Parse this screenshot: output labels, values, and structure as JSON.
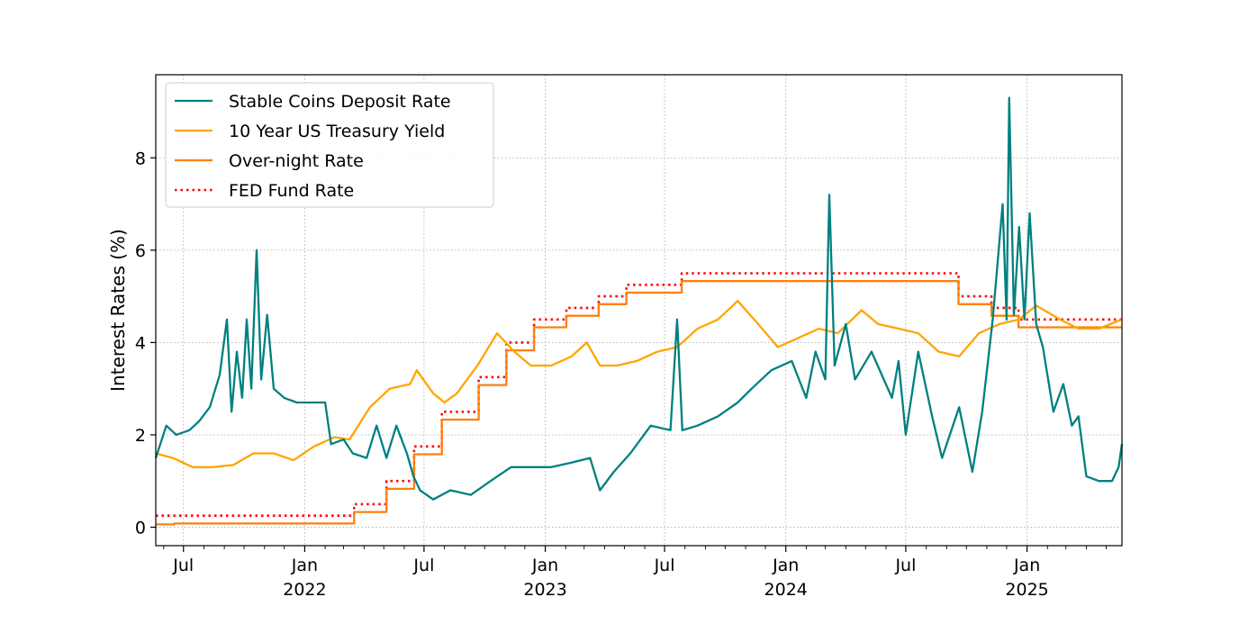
{
  "chart_data": {
    "type": "line",
    "title": "",
    "xlabel": "",
    "ylabel": "Interest Rates (%)",
    "xlim": [
      "2021-05-20",
      "2025-05-25"
    ],
    "ylim": [
      -0.4,
      9.8
    ],
    "grid": true,
    "legend_position": "upper-left",
    "yticks": [
      0,
      2,
      4,
      6,
      8
    ],
    "xticks": [
      {
        "date": "2021-07-01",
        "label": "Jul",
        "year": ""
      },
      {
        "date": "2022-01-01",
        "label": "Jan",
        "year": "2022"
      },
      {
        "date": "2022-07-01",
        "label": "Jul",
        "year": ""
      },
      {
        "date": "2023-01-01",
        "label": "Jan",
        "year": "2023"
      },
      {
        "date": "2023-07-01",
        "label": "Jul",
        "year": ""
      },
      {
        "date": "2024-01-01",
        "label": "Jan",
        "year": "2024"
      },
      {
        "date": "2024-07-01",
        "label": "Jul",
        "year": ""
      },
      {
        "date": "2025-01-01",
        "label": "Jan",
        "year": "2025"
      }
    ],
    "series": [
      {
        "name": "Stable Coins Deposit Rate",
        "color": "#008080",
        "style": "solid",
        "points": [
          [
            "2021-05-20",
            1.5
          ],
          [
            "2021-06-05",
            2.2
          ],
          [
            "2021-06-20",
            2.0
          ],
          [
            "2021-07-10",
            2.1
          ],
          [
            "2021-07-25",
            2.3
          ],
          [
            "2021-08-10",
            2.6
          ],
          [
            "2021-08-25",
            3.3
          ],
          [
            "2021-09-05",
            4.5
          ],
          [
            "2021-09-12",
            2.5
          ],
          [
            "2021-09-20",
            3.8
          ],
          [
            "2021-09-28",
            2.8
          ],
          [
            "2021-10-05",
            4.5
          ],
          [
            "2021-10-12",
            3.0
          ],
          [
            "2021-10-20",
            6.0
          ],
          [
            "2021-10-27",
            3.2
          ],
          [
            "2021-11-05",
            4.6
          ],
          [
            "2021-11-15",
            3.0
          ],
          [
            "2021-12-01",
            2.8
          ],
          [
            "2021-12-20",
            2.7
          ],
          [
            "2022-01-10",
            2.7
          ],
          [
            "2022-02-01",
            2.7
          ],
          [
            "2022-02-10",
            1.8
          ],
          [
            "2022-03-01",
            1.9
          ],
          [
            "2022-03-15",
            1.6
          ],
          [
            "2022-04-05",
            1.5
          ],
          [
            "2022-04-20",
            2.2
          ],
          [
            "2022-05-05",
            1.5
          ],
          [
            "2022-05-20",
            2.2
          ],
          [
            "2022-06-05",
            1.6
          ],
          [
            "2022-06-15",
            1.1
          ],
          [
            "2022-06-25",
            0.8
          ],
          [
            "2022-07-15",
            0.6
          ],
          [
            "2022-08-10",
            0.8
          ],
          [
            "2022-09-10",
            0.7
          ],
          [
            "2022-10-10",
            1.0
          ],
          [
            "2022-11-10",
            1.3
          ],
          [
            "2022-12-10",
            1.3
          ],
          [
            "2023-01-10",
            1.3
          ],
          [
            "2023-02-10",
            1.4
          ],
          [
            "2023-03-10",
            1.5
          ],
          [
            "2023-03-25",
            0.8
          ],
          [
            "2023-04-15",
            1.2
          ],
          [
            "2023-05-10",
            1.6
          ],
          [
            "2023-06-10",
            2.2
          ],
          [
            "2023-07-10",
            2.1
          ],
          [
            "2023-07-20",
            4.5
          ],
          [
            "2023-07-28",
            2.1
          ],
          [
            "2023-08-20",
            2.2
          ],
          [
            "2023-09-20",
            2.4
          ],
          [
            "2023-10-20",
            2.7
          ],
          [
            "2023-11-10",
            3.0
          ],
          [
            "2023-12-10",
            3.4
          ],
          [
            "2024-01-10",
            3.6
          ],
          [
            "2024-02-01",
            2.8
          ],
          [
            "2024-02-15",
            3.8
          ],
          [
            "2024-03-01",
            3.2
          ],
          [
            "2024-03-07",
            7.2
          ],
          [
            "2024-03-15",
            3.5
          ],
          [
            "2024-04-01",
            4.4
          ],
          [
            "2024-04-15",
            3.2
          ],
          [
            "2024-05-10",
            3.8
          ],
          [
            "2024-06-10",
            2.8
          ],
          [
            "2024-06-20",
            3.6
          ],
          [
            "2024-07-01",
            2.0
          ],
          [
            "2024-07-20",
            3.8
          ],
          [
            "2024-08-10",
            2.4
          ],
          [
            "2024-08-25",
            1.5
          ],
          [
            "2024-09-20",
            2.6
          ],
          [
            "2024-10-10",
            1.2
          ],
          [
            "2024-10-25",
            2.5
          ],
          [
            "2024-11-10",
            4.5
          ],
          [
            "2024-11-25",
            7.0
          ],
          [
            "2024-12-01",
            4.5
          ],
          [
            "2024-12-05",
            9.3
          ],
          [
            "2024-12-12",
            4.6
          ],
          [
            "2024-12-20",
            6.5
          ],
          [
            "2024-12-28",
            4.5
          ],
          [
            "2025-01-05",
            6.8
          ],
          [
            "2025-01-15",
            4.4
          ],
          [
            "2025-01-25",
            3.9
          ],
          [
            "2025-02-10",
            2.5
          ],
          [
            "2025-02-25",
            3.1
          ],
          [
            "2025-03-10",
            2.2
          ],
          [
            "2025-03-20",
            2.4
          ],
          [
            "2025-04-01",
            1.1
          ],
          [
            "2025-04-20",
            1.0
          ],
          [
            "2025-05-10",
            1.0
          ],
          [
            "2025-05-20",
            1.3
          ],
          [
            "2025-05-25",
            1.8
          ]
        ]
      },
      {
        "name": "10 Year US Treasury Yield",
        "color": "#ffa500",
        "style": "solid",
        "points": [
          [
            "2021-05-20",
            1.6
          ],
          [
            "2021-06-15",
            1.5
          ],
          [
            "2021-07-15",
            1.3
          ],
          [
            "2021-08-15",
            1.3
          ],
          [
            "2021-09-15",
            1.35
          ],
          [
            "2021-10-15",
            1.6
          ],
          [
            "2021-11-15",
            1.6
          ],
          [
            "2021-12-15",
            1.45
          ],
          [
            "2022-01-15",
            1.75
          ],
          [
            "2022-02-15",
            1.95
          ],
          [
            "2022-03-10",
            1.9
          ],
          [
            "2022-04-10",
            2.6
          ],
          [
            "2022-05-10",
            3.0
          ],
          [
            "2022-06-10",
            3.1
          ],
          [
            "2022-06-20",
            3.4
          ],
          [
            "2022-07-15",
            2.9
          ],
          [
            "2022-08-01",
            2.7
          ],
          [
            "2022-08-20",
            2.9
          ],
          [
            "2022-09-20",
            3.5
          ],
          [
            "2022-10-20",
            4.2
          ],
          [
            "2022-11-15",
            3.8
          ],
          [
            "2022-12-10",
            3.5
          ],
          [
            "2023-01-10",
            3.5
          ],
          [
            "2023-02-10",
            3.7
          ],
          [
            "2023-03-05",
            4.0
          ],
          [
            "2023-03-25",
            3.5
          ],
          [
            "2023-04-20",
            3.5
          ],
          [
            "2023-05-20",
            3.6
          ],
          [
            "2023-06-20",
            3.8
          ],
          [
            "2023-07-20",
            3.9
          ],
          [
            "2023-08-20",
            4.3
          ],
          [
            "2023-09-20",
            4.5
          ],
          [
            "2023-10-20",
            4.9
          ],
          [
            "2023-11-20",
            4.4
          ],
          [
            "2023-12-20",
            3.9
          ],
          [
            "2024-01-20",
            4.1
          ],
          [
            "2024-02-20",
            4.3
          ],
          [
            "2024-03-20",
            4.2
          ],
          [
            "2024-04-25",
            4.7
          ],
          [
            "2024-05-20",
            4.4
          ],
          [
            "2024-06-20",
            4.3
          ],
          [
            "2024-07-20",
            4.2
          ],
          [
            "2024-08-20",
            3.8
          ],
          [
            "2024-09-20",
            3.7
          ],
          [
            "2024-10-20",
            4.2
          ],
          [
            "2024-11-20",
            4.4
          ],
          [
            "2024-12-20",
            4.5
          ],
          [
            "2025-01-15",
            4.8
          ],
          [
            "2025-02-20",
            4.5
          ],
          [
            "2025-03-20",
            4.3
          ],
          [
            "2025-04-20",
            4.3
          ],
          [
            "2025-05-25",
            4.5
          ]
        ]
      },
      {
        "name": "Over-night Rate",
        "color": "#ff7f0e",
        "style": "solid",
        "steps": [
          [
            "2021-05-20",
            0.06
          ],
          [
            "2021-06-17",
            0.08
          ],
          [
            "2022-03-17",
            0.33
          ],
          [
            "2022-05-05",
            0.83
          ],
          [
            "2022-06-16",
            1.58
          ],
          [
            "2022-07-28",
            2.33
          ],
          [
            "2022-09-22",
            3.08
          ],
          [
            "2022-11-03",
            3.83
          ],
          [
            "2022-12-15",
            4.33
          ],
          [
            "2023-02-02",
            4.58
          ],
          [
            "2023-03-23",
            4.83
          ],
          [
            "2023-05-04",
            5.08
          ],
          [
            "2023-07-27",
            5.33
          ],
          [
            "2024-09-19",
            4.83
          ],
          [
            "2024-11-08",
            4.58
          ],
          [
            "2024-12-19",
            4.33
          ],
          [
            "2025-05-25",
            4.33
          ]
        ]
      },
      {
        "name": "FED Fund Rate",
        "color": "#ff0000",
        "style": "dotted",
        "steps": [
          [
            "2021-05-20",
            0.25
          ],
          [
            "2022-03-17",
            0.5
          ],
          [
            "2022-05-05",
            1.0
          ],
          [
            "2022-06-16",
            1.75
          ],
          [
            "2022-07-28",
            2.5
          ],
          [
            "2022-09-22",
            3.25
          ],
          [
            "2022-11-03",
            4.0
          ],
          [
            "2022-12-15",
            4.5
          ],
          [
            "2023-02-02",
            4.75
          ],
          [
            "2023-03-23",
            5.0
          ],
          [
            "2023-05-04",
            5.25
          ],
          [
            "2023-07-27",
            5.5
          ],
          [
            "2024-09-19",
            5.0
          ],
          [
            "2024-11-08",
            4.75
          ],
          [
            "2024-12-19",
            4.5
          ],
          [
            "2025-05-25",
            4.5
          ]
        ]
      }
    ]
  }
}
